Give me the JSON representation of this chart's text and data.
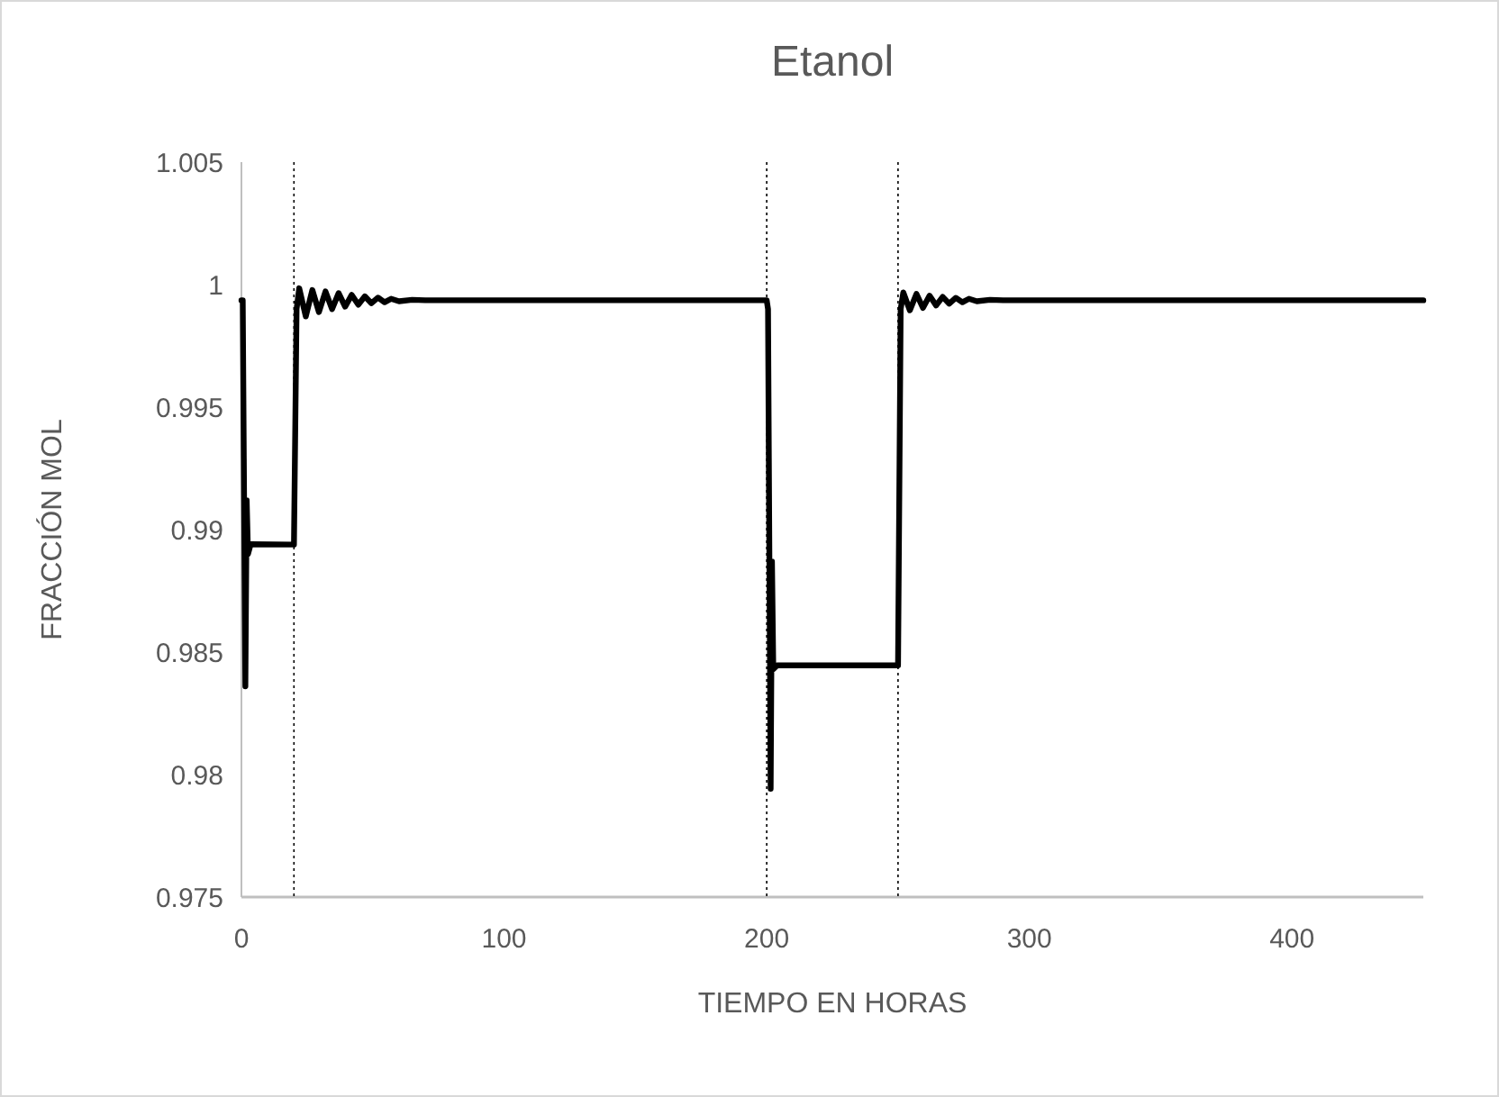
{
  "chart_data": {
    "type": "line",
    "title": "Etanol",
    "xlabel": "TIEMPO EN HORAS",
    "ylabel": "FRACCIÓN MOL",
    "xlim": [
      0,
      450
    ],
    "xticks": [
      0,
      100,
      200,
      300,
      400
    ],
    "ylim": [
      0.975,
      1.005
    ],
    "yticks": [
      {
        "value": 0.975,
        "label": "0.975"
      },
      {
        "value": 0.98,
        "label": "0.98"
      },
      {
        "value": 0.985,
        "label": "0.985"
      },
      {
        "value": 0.99,
        "label": "0.99"
      },
      {
        "value": 0.995,
        "label": "0.995"
      },
      {
        "value": 1,
        "label": "1"
      },
      {
        "value": 1.005,
        "label": "1.005"
      }
    ],
    "grid": false,
    "marker": "none",
    "line_style": "solid",
    "ref_lines": [
      {
        "axis": "x",
        "value": 20,
        "color": "#000000",
        "line_style": "dotted"
      },
      {
        "axis": "x",
        "value": 200,
        "color": "#000000",
        "line_style": "dotted"
      },
      {
        "axis": "x",
        "value": 250,
        "color": "#000000",
        "line_style": "dotted"
      }
    ],
    "series": [
      {
        "color": "#000000",
        "x": [
          0,
          0.5,
          1.5,
          2,
          2.5,
          3.5,
          20,
          21,
          22,
          24.5,
          27,
          29.5,
          32,
          34.5,
          37,
          39.5,
          42,
          44.5,
          47,
          49.5,
          52,
          54.5,
          57,
          60,
          65,
          70,
          200,
          200.5,
          201.5,
          202,
          202.5,
          204,
          250,
          251,
          252,
          254.5,
          257,
          259.5,
          262,
          264.5,
          267,
          269.5,
          272,
          274.5,
          277,
          280,
          285,
          290,
          450
        ],
        "values": [
          0.99936,
          0.99936,
          0.9836,
          0.9912,
          0.989,
          0.9894,
          0.98939,
          0.999,
          0.99985,
          0.9987,
          0.99978,
          0.99888,
          0.99972,
          0.999,
          0.99965,
          0.9991,
          0.99958,
          0.99918,
          0.99952,
          0.99924,
          0.99947,
          0.99928,
          0.99942,
          0.99932,
          0.99938,
          0.99936,
          0.99936,
          0.999,
          0.97942,
          0.9887,
          0.9843,
          0.98446,
          0.98446,
          0.999,
          0.99968,
          0.99895,
          0.99962,
          0.99905,
          0.99955,
          0.99915,
          0.9995,
          0.99922,
          0.99946,
          0.99928,
          0.99942,
          0.99932,
          0.99938,
          0.99936,
          0.99936
        ]
      }
    ]
  }
}
